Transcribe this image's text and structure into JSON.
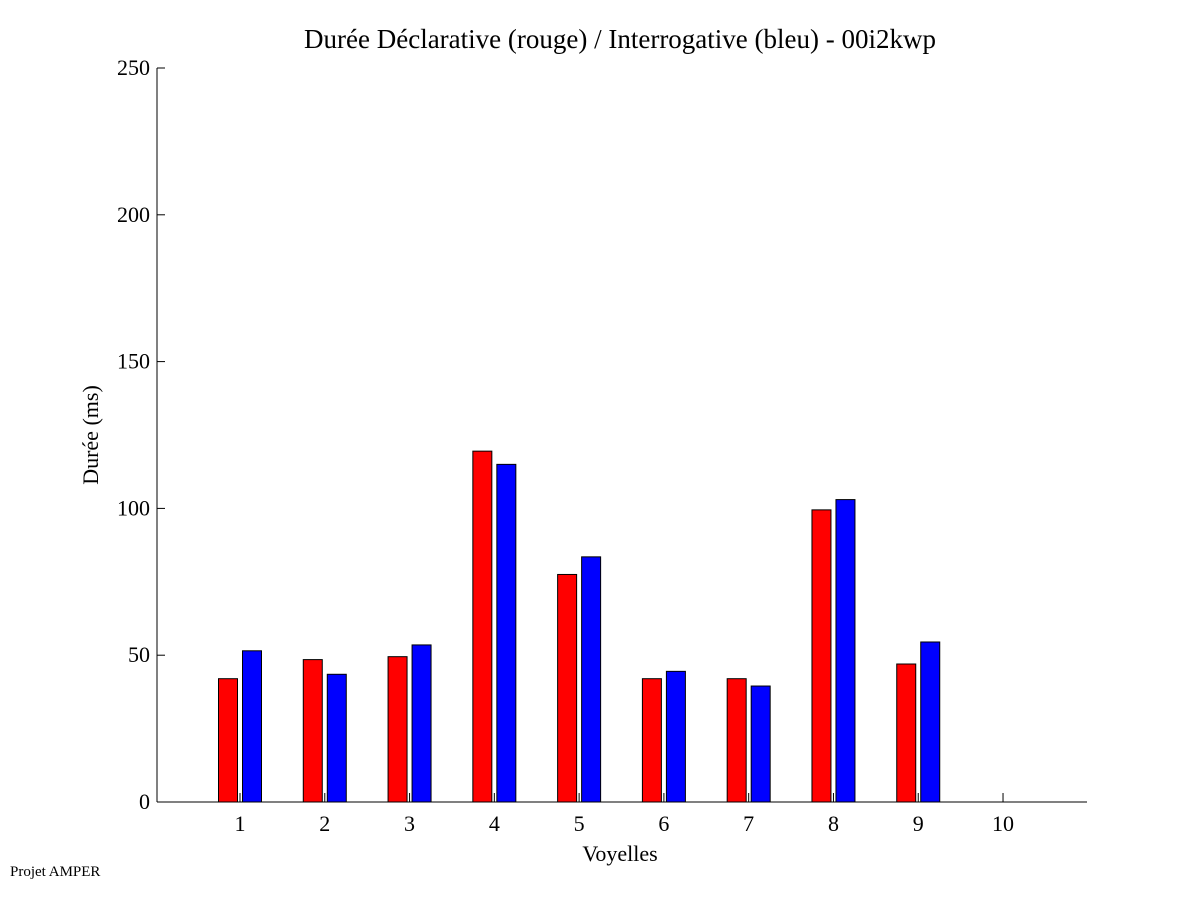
{
  "footer": "Projet AMPER",
  "chart_data": {
    "type": "bar",
    "title": "Durée Déclarative (rouge) / Interrogative (bleu) - 00i2kwp",
    "xlabel": "Voyelles",
    "ylabel": "Durée (ms)",
    "categories": [
      "1",
      "2",
      "3",
      "4",
      "5",
      "6",
      "7",
      "8",
      "9",
      "10"
    ],
    "ylim": [
      0,
      250
    ],
    "yticks": [
      "0",
      "50",
      "100",
      "150",
      "200",
      "250"
    ],
    "grid": false,
    "series": [
      {
        "color": "#ff0000",
        "values": [
          42,
          48.5,
          49.5,
          119.5,
          77.5,
          42,
          42,
          99.5,
          47,
          null
        ]
      },
      {
        "color": "#0000ff",
        "values": [
          51.5,
          43.5,
          53.5,
          115,
          83.5,
          44.5,
          39.5,
          103,
          54.5,
          null
        ]
      }
    ]
  }
}
